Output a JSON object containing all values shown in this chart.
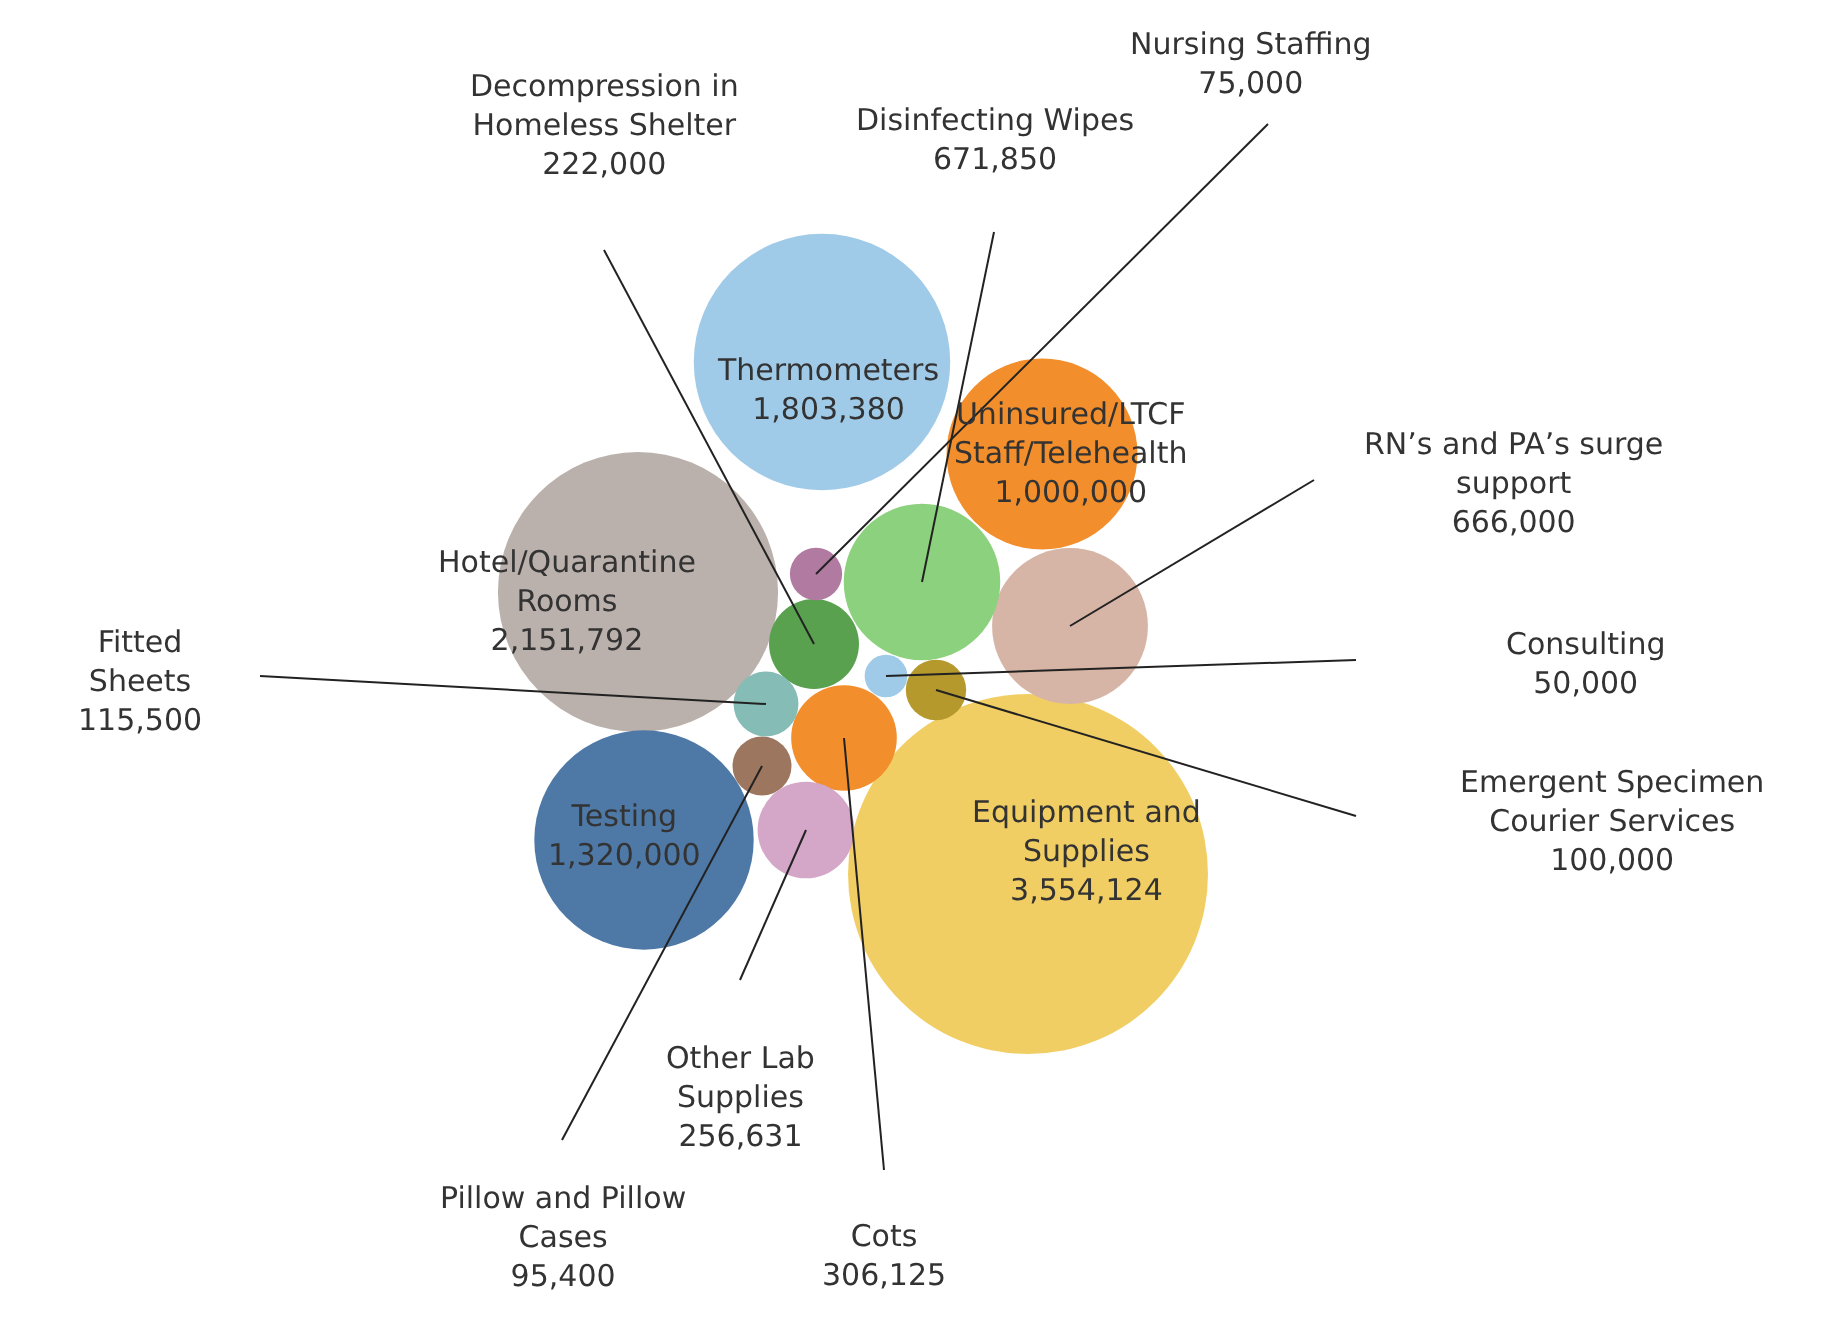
{
  "chart_data": {
    "type": "other",
    "categories": [
      "Thermometers",
      "Uninsured/LTCF Staff/Telehealth",
      "Hotel/Quarantine Rooms",
      "Testing",
      "Equipment and Supplies",
      "RN’s and PA’s surge support",
      "Disinfecting Wipes",
      "Decompression in Homeless Shelter",
      "Nursing Staffing",
      "Cots",
      "Pillow and Pillow Cases",
      "Other Lab Supplies",
      "Fitted Sheets",
      "Consulting",
      "Emergent Specimen Courier Services"
    ],
    "values": [
      1803380,
      1000000,
      2151792,
      1320000,
      3554124,
      666000,
      671850,
      222000,
      75000,
      306125,
      95400,
      256631,
      115500,
      50000,
      100000
    ],
    "value_labels": [
      "1,803,380",
      "1,000,000",
      "2,151,792",
      "1,320,000",
      "3,554,124",
      "666,000",
      "671,850",
      "222,000",
      "75,000",
      "306,125",
      "95,400",
      "256,631",
      "115,500",
      "50,000",
      "100,000"
    ],
    "colors": [
      "#a0cbe8",
      "#f28e2b",
      "#bab0ac",
      "#4e79a7",
      "#f1ce63",
      "#d7b5a6",
      "#8cd17d",
      "#59a14f",
      "#b07aa1",
      "#f28e2b",
      "#9d7660",
      "#d4a6c8",
      "#86bcb6",
      "#a0cbe8",
      "#b6992d"
    ]
  }
}
